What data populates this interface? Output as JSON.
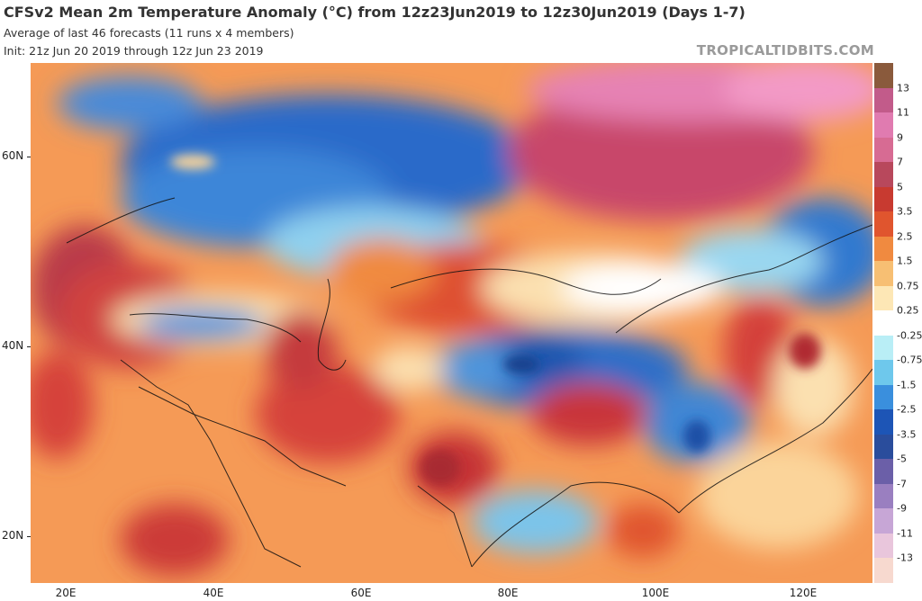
{
  "header": {
    "title": "CFSv2 Mean 2m Temperature Anomaly (°C) from 12z23Jun2019 to 12z30Jun2019 (Days 1-7)",
    "subtitle1": "Average of last 46 forecasts (11 runs x 4 members)",
    "subtitle2": "Init: 21z Jun 20 2019 through 12z Jun 23 2019",
    "brand": "TROPICALTIDBITS.COM"
  },
  "axes": {
    "lat_labels": [
      "60N",
      "40N",
      "20N"
    ],
    "lon_labels": [
      "20E",
      "40E",
      "60E",
      "80E",
      "100E",
      "120E"
    ]
  },
  "colorbar": {
    "labels": [
      "13",
      "11",
      "9",
      "7",
      "5",
      "3.5",
      "2.5",
      "1.5",
      "0.75",
      "0.25",
      "-0.25",
      "-0.75",
      "-1.5",
      "-2.5",
      "-3.5",
      "-5",
      "-7",
      "-9",
      "-11",
      "-13"
    ],
    "colors": [
      "#8a5a3c",
      "#c25b8a",
      "#e07bb0",
      "#d76b93",
      "#b8485c",
      "#c83a30",
      "#e0552e",
      "#f08a40",
      "#f7bf73",
      "#fde7b5",
      "#ffffff",
      "#b9eef6",
      "#6ec8ec",
      "#3a8fdd",
      "#1d55b6",
      "#2a4d9c",
      "#6b5fa8",
      "#9a7fc0",
      "#c7a6d6",
      "#e9c6dc",
      "#f7d9cf"
    ]
  },
  "map": {
    "land_color": "#f7a45c",
    "anomaly_regions": [
      {
        "name": "Arctic Russia warm",
        "anomaly_c": 7
      },
      {
        "name": "Scandinavia cold",
        "anomaly_c": -2.5
      },
      {
        "name": "Eastern Europe warm",
        "anomaly_c": 5
      },
      {
        "name": "Kazakhstan warm",
        "anomaly_c": 2.5
      },
      {
        "name": "Tibet cold",
        "anomaly_c": -3.5
      },
      {
        "name": "Arabia warm",
        "anomaly_c": 3.5
      },
      {
        "name": "Pakistan warm",
        "anomaly_c": 5
      },
      {
        "name": "Northeast China warm",
        "anomaly_c": 3.5
      },
      {
        "name": "Central China cold",
        "anomaly_c": -2.5
      }
    ]
  }
}
